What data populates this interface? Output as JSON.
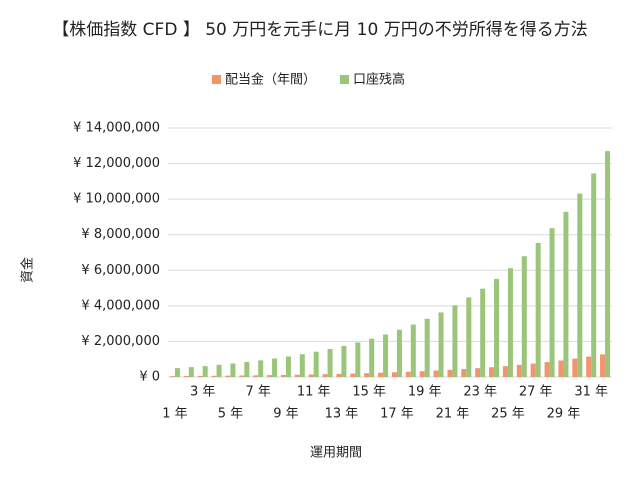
{
  "chart_data": {
    "type": "bar",
    "title": "【株価指数 CFD 】 50 万円を元手に月 10 万円の不労所得を得る方法",
    "x_label": "運用期間",
    "y_label": "資金",
    "categories": [
      "1 年",
      null,
      "3 年",
      null,
      "5 年",
      null,
      "7 年",
      null,
      "9 年",
      null,
      "11 年",
      null,
      "13 年",
      null,
      "15 年",
      null,
      "17 年",
      null,
      "19 年",
      null,
      "21 年",
      null,
      "23 年",
      null,
      "25 年",
      null,
      "27 年",
      null,
      "29 年",
      null,
      "31 年",
      null
    ],
    "series": [
      {
        "name": "配当金（年間）",
        "color": "#f0956d",
        "values": [
          50000,
          55500,
          61600,
          68400,
          75900,
          84300,
          93500,
          103800,
          115200,
          127900,
          142000,
          157600,
          174900,
          194100,
          215500,
          239200,
          265500,
          294700,
          327100,
          363100,
          403000,
          447400,
          496600,
          551200,
          611800,
          679100,
          753800,
          836700,
          928800,
          1031000,
          1144400,
          1270300
        ]
      },
      {
        "name": "口座残高",
        "color": "#9bc57a",
        "values": [
          500000,
          555000,
          616000,
          684000,
          759000,
          843000,
          935000,
          1038000,
          1152000,
          1279000,
          1420000,
          1576000,
          1749000,
          1941000,
          2155000,
          2392000,
          2655000,
          2947000,
          3271000,
          3631000,
          4030000,
          4474000,
          4966000,
          5512000,
          6118000,
          6791000,
          7538000,
          8367000,
          9288000,
          10310000,
          11444000,
          12703000
        ]
      }
    ],
    "ylim": [
      0,
      14000000
    ],
    "yticks": [
      {
        "value": 0,
        "label": "¥ 0"
      },
      {
        "value": 2000000,
        "label": "¥ 2,000,000"
      },
      {
        "value": 4000000,
        "label": "¥ 4,000,000"
      },
      {
        "value": 6000000,
        "label": "¥ 6,000,000"
      },
      {
        "value": 8000000,
        "label": "¥ 8,000,000"
      },
      {
        "value": 10000000,
        "label": "¥ 10,000,000"
      },
      {
        "value": 12000000,
        "label": "¥ 12,000,000"
      },
      {
        "value": 14000000,
        "label": "¥ 14,000,000"
      }
    ],
    "grid": true,
    "legend": "top"
  }
}
